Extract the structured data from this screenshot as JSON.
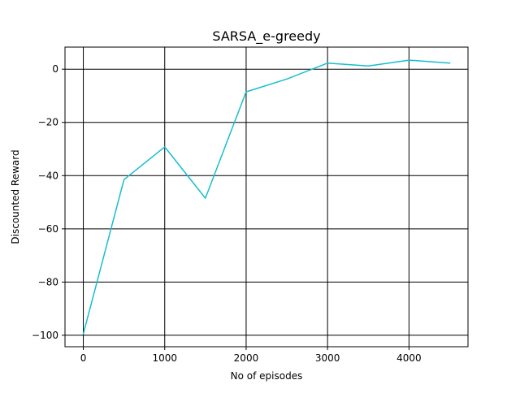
{
  "chart_data": {
    "type": "line",
    "title": "SARSA_e-greedy",
    "xlabel": "No of episodes",
    "ylabel": "Discounted Reward",
    "xlim": [
      -225,
      4725
    ],
    "ylim": [
      -104.3,
      8.3
    ],
    "xticks": [
      0,
      1000,
      2000,
      3000,
      4000
    ],
    "yticks": [
      -100,
      -80,
      -60,
      -40,
      -20,
      0
    ],
    "grid": true,
    "line_color": "#17becf",
    "series": [
      {
        "x": [
          0,
          500,
          1000,
          1500,
          2000,
          2500,
          3000,
          3500,
          4000,
          4500
        ],
        "y": [
          -99.5,
          -41.5,
          -29.2,
          -48.5,
          -8.5,
          -3.7,
          2.3,
          1.2,
          3.4,
          2.3
        ]
      }
    ]
  }
}
